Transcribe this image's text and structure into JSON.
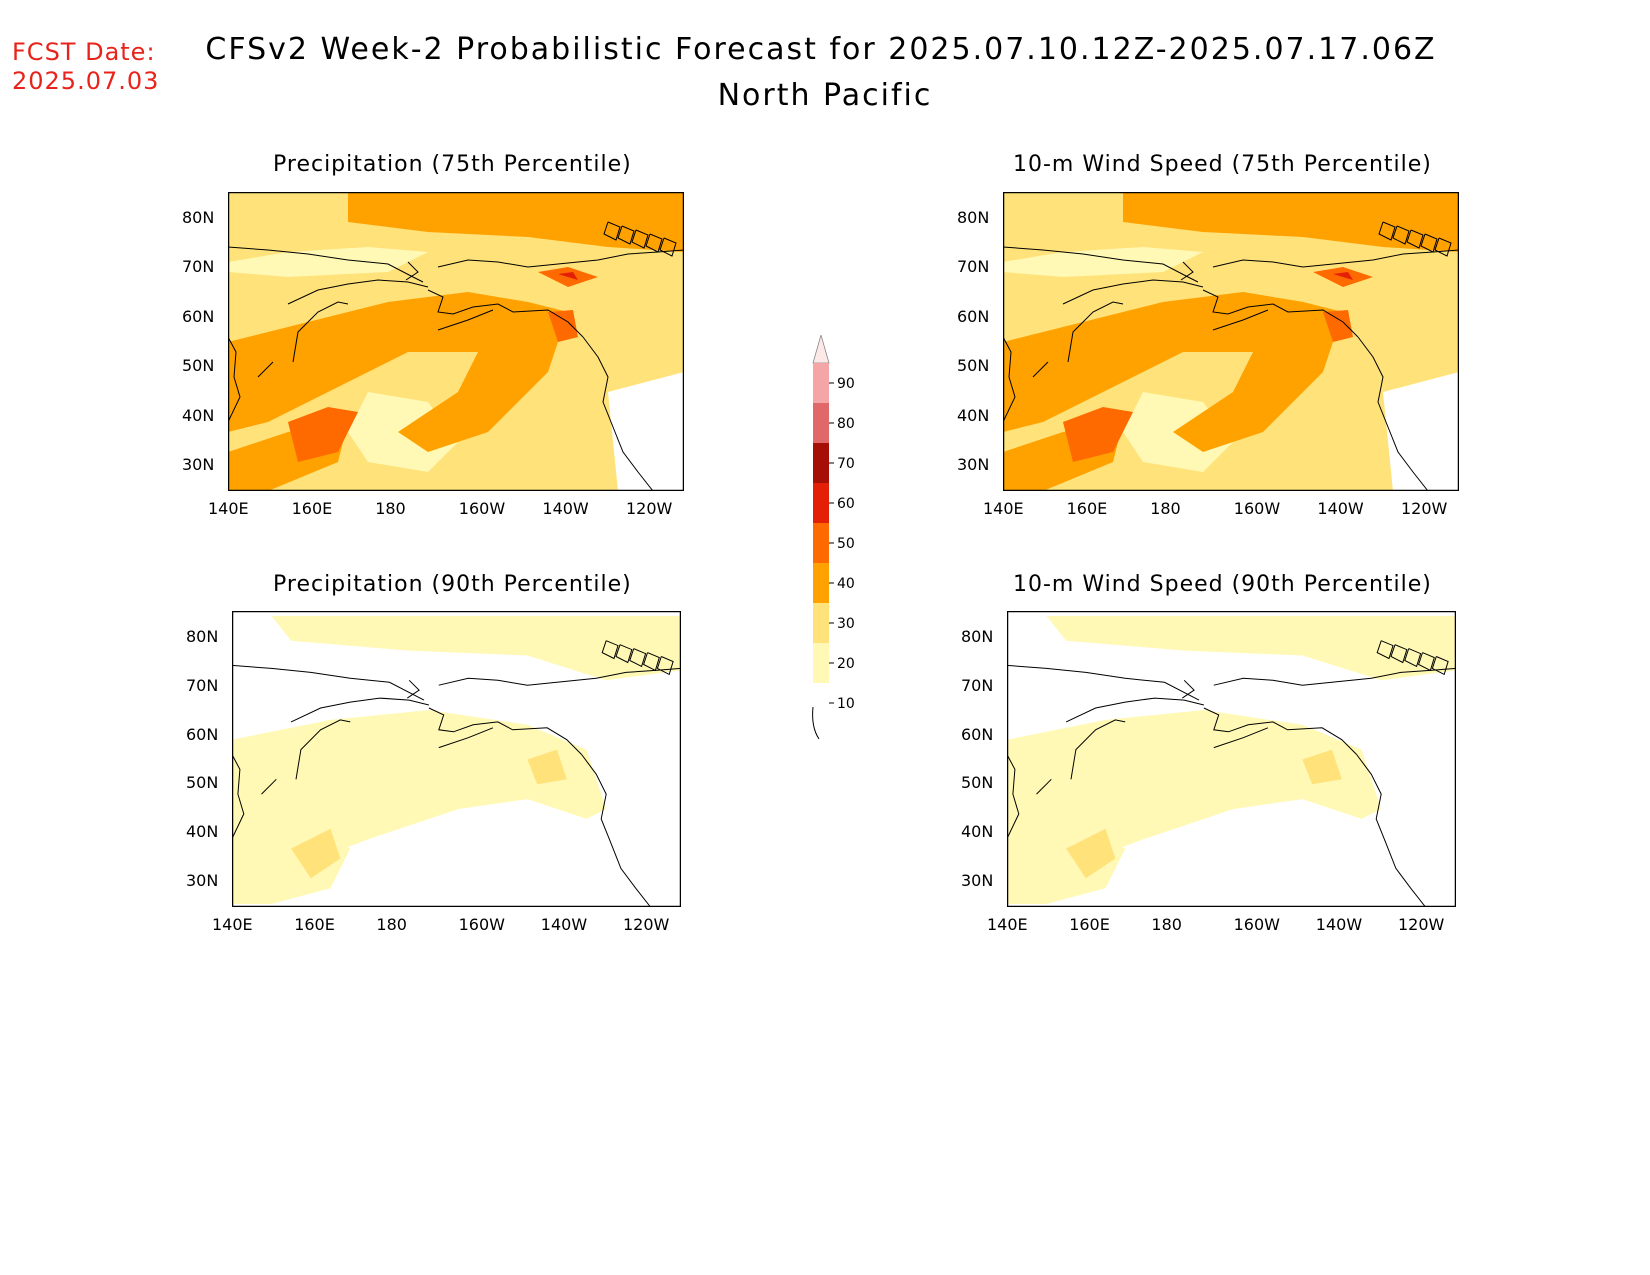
{
  "header": {
    "fcst_label": "FCST Date:",
    "fcst_date": "2025.07.03",
    "title": "CFSv2 Week-2 Probabilistic Forecast for 2025.07.10.12Z-2025.07.17.06Z",
    "region": "North Pacific"
  },
  "panels": [
    {
      "title": "Precipitation (75th Percentile)",
      "intensity": "high"
    },
    {
      "title": "10-m Wind Speed (75th Percentile)",
      "intensity": "high"
    },
    {
      "title": "Precipitation (90th Percentile)",
      "intensity": "low"
    },
    {
      "title": "10-m Wind Speed (90th Percentile)",
      "intensity": "low"
    }
  ],
  "axes": {
    "lat_labels": [
      "80N",
      "70N",
      "60N",
      "50N",
      "40N",
      "30N"
    ],
    "lon_labels": [
      "140E",
      "160E",
      "180",
      "160W",
      "140W",
      "120W"
    ]
  },
  "colorbar": {
    "labels": [
      "90",
      "80",
      "70",
      "60",
      "50",
      "40",
      "30",
      "20",
      "10"
    ],
    "colors": [
      "#fde8e8",
      "#f4a6a6",
      "#e06868",
      "#a50f06",
      "#e31f08",
      "#ff6a00",
      "#ffa200",
      "#ffe27a",
      "#fff9b5"
    ]
  }
}
